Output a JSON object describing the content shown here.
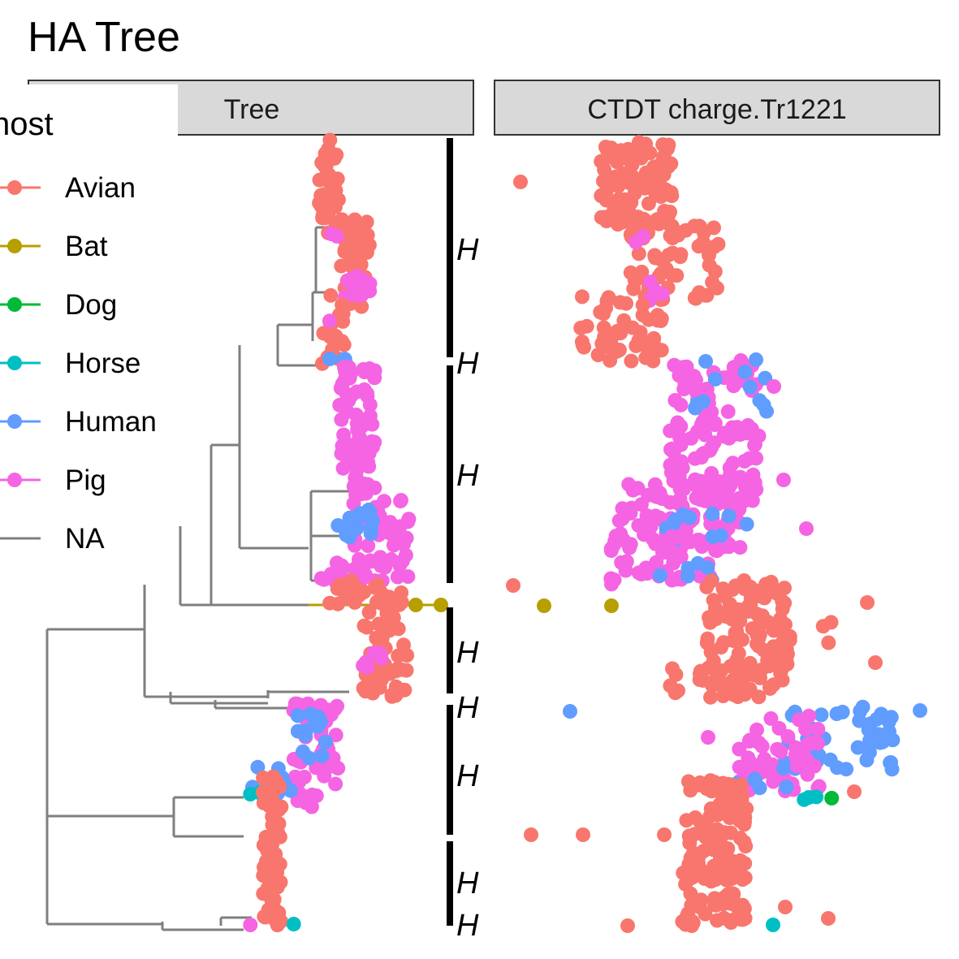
{
  "title": "HA Tree",
  "panels": [
    "Tree",
    "CTDT charge.Tr1221"
  ],
  "chart_data": {
    "type": "scatter",
    "title": "HA Tree",
    "facets": [
      "Tree",
      "CTDT charge.Tr1221"
    ],
    "legend": {
      "title": "host",
      "position": "left",
      "entries": [
        {
          "name": "Avian",
          "color": "#F8766D"
        },
        {
          "name": "Bat",
          "color": "#B79F00"
        },
        {
          "name": "Dog",
          "color": "#00BA38"
        },
        {
          "name": "Horse",
          "color": "#00BFC4"
        },
        {
          "name": "Human",
          "color": "#619CFF"
        },
        {
          "name": "Pig",
          "color": "#F564E3"
        },
        {
          "name": "NA",
          "color": "#7F7F7F"
        }
      ]
    },
    "clade_bar_labels": [
      "H",
      "H",
      "H",
      "H",
      "H",
      "H",
      "H",
      "H"
    ],
    "grid": false,
    "note_values": "Tip positions ordered top-to-bottom by tree order; CTDT charge x-values read approximately (no axis printed)."
  }
}
